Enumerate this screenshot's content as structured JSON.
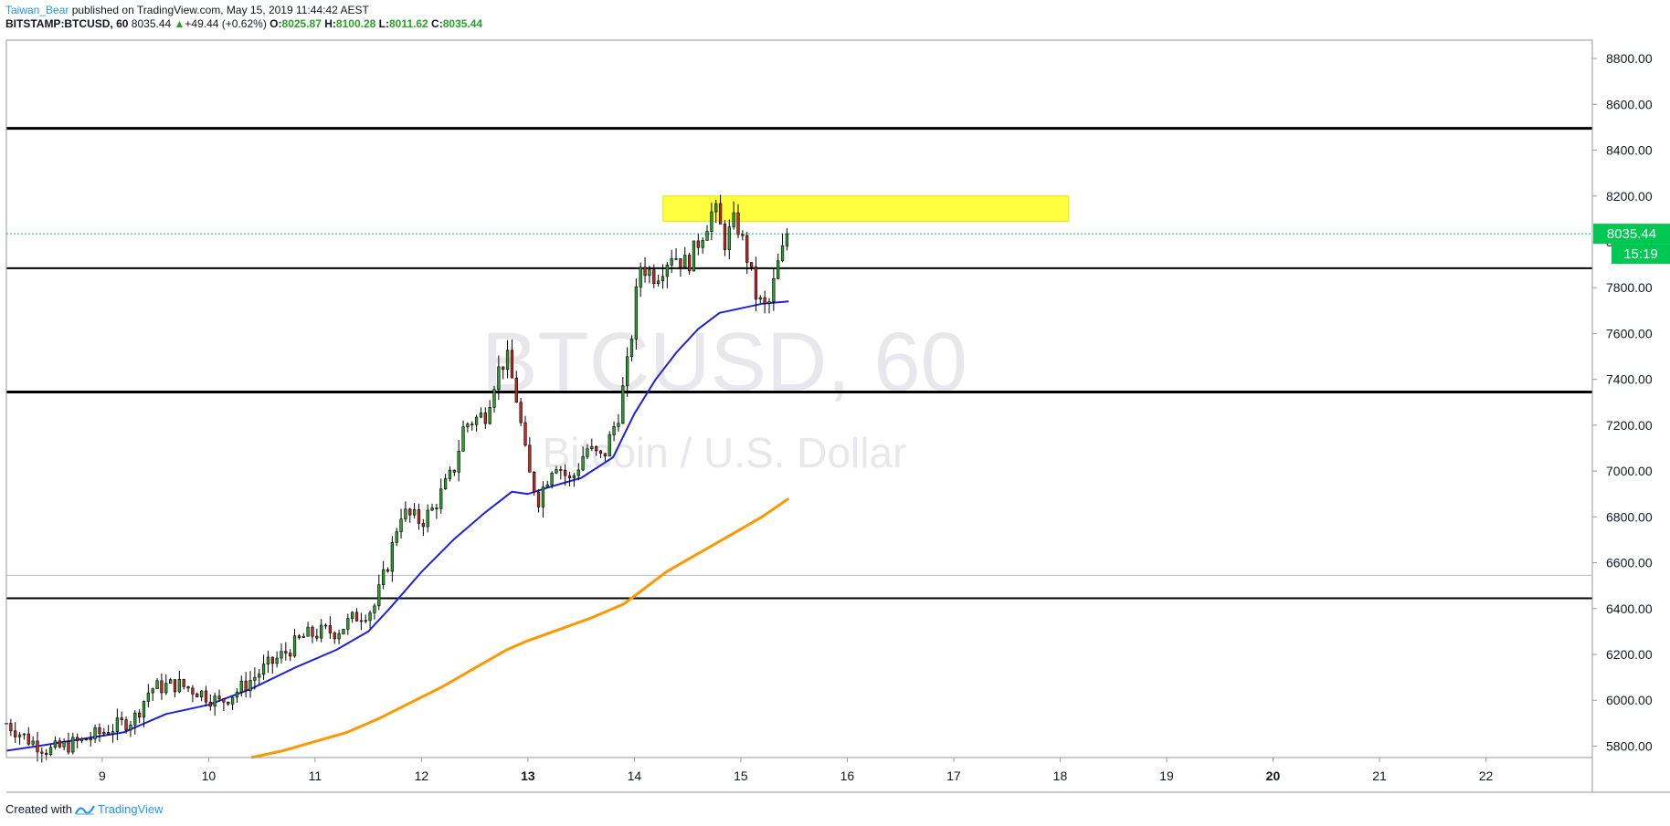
{
  "header": {
    "user": "Taiwan_Bear",
    "published": " published on TradingView.com, May 15, 2019 11:44:42 AEST",
    "symbol": "BITSTAMP:BTCUSD, 60",
    "last": "8035.44",
    "change": "+49.44 (+0.62%)",
    "o_label": "O:",
    "o": "8025.87",
    "h_label": "H:",
    "h": "8100.28",
    "l_label": "L:",
    "l": "8011.62",
    "c_label": "C:",
    "c": "8035.44"
  },
  "watermark": {
    "symbol": "BTCUSD, 60",
    "name": "Bitcoin / U.S. Dollar"
  },
  "price_badge": {
    "price": "8035.44",
    "countdown": "15:19"
  },
  "footer": {
    "created_with": "Created with",
    "brand": "TradingView"
  },
  "colors": {
    "up": "#26a69a",
    "bull_body": "#2ca02c",
    "bear_body": "#c62828",
    "ma_fast": "#1e22d6",
    "ma_slow": "#ff9800",
    "zone": "#ffff00",
    "last_price": "#00c853"
  },
  "chart_data": {
    "type": "candlestick",
    "title": "",
    "xlabel": "",
    "ylabel": "",
    "ylim": [
      5750,
      8880
    ],
    "x_ticks": [
      "9",
      "10",
      "11",
      "12",
      "13",
      "14",
      "15",
      "16",
      "17",
      "18",
      "19",
      "20",
      "21",
      "22"
    ],
    "x_tick_values": [
      9,
      10,
      11,
      12,
      13,
      14,
      15,
      16,
      17,
      18,
      19,
      20,
      21,
      22
    ],
    "bold_ticks": [
      "13",
      "20"
    ],
    "xlim": [
      8.1,
      23.0
    ],
    "y_ticks": [
      5800,
      6000,
      6200,
      6400,
      6600,
      6800,
      7000,
      7200,
      7400,
      7600,
      7800,
      8000,
      8200,
      8400,
      8600,
      8800
    ],
    "y_tick_labels": [
      "5800.00",
      "6000.00",
      "6200.00",
      "6400.00",
      "6600.00",
      "6800.00",
      "7000.00",
      "7200.00",
      "7400.00",
      "7600.00",
      "7800.00",
      "8000.00",
      "8200.00",
      "8400.00",
      "8600.00",
      "8800.00"
    ],
    "horizontal_lines": [
      {
        "price": 8495,
        "width": 3
      },
      {
        "price": 7885,
        "width": 2
      },
      {
        "price": 7345,
        "width": 3
      },
      {
        "price": 6445,
        "width": 2
      },
      {
        "price": 6545,
        "width": 1,
        "color": "#bbbbbb"
      }
    ],
    "zone": {
      "x_start": 14.27,
      "x_end": 18.08,
      "low": 8090,
      "high": 8200
    },
    "last_price": 8035.44,
    "candle_anchors": [
      [
        8.1,
        5900
      ],
      [
        8.3,
        5830
      ],
      [
        8.5,
        5780
      ],
      [
        8.8,
        5820
      ],
      [
        9.1,
        5880
      ],
      [
        9.3,
        5920
      ],
      [
        9.45,
        6050
      ],
      [
        9.7,
        6070
      ],
      [
        9.9,
        6040
      ],
      [
        10.1,
        5990
      ],
      [
        10.3,
        6050
      ],
      [
        10.5,
        6130
      ],
      [
        10.7,
        6200
      ],
      [
        10.9,
        6280
      ],
      [
        11.1,
        6300
      ],
      [
        11.2,
        6300
      ],
      [
        11.4,
        6370
      ],
      [
        11.55,
        6400
      ],
      [
        11.7,
        6620
      ],
      [
        11.8,
        6820
      ],
      [
        12.0,
        6780
      ],
      [
        12.1,
        6830
      ],
      [
        12.3,
        7000
      ],
      [
        12.4,
        7200
      ],
      [
        12.6,
        7250
      ],
      [
        12.7,
        7420
      ],
      [
        12.8,
        7500
      ],
      [
        12.9,
        7300
      ],
      [
        13.0,
        7000
      ],
      [
        13.1,
        6880
      ],
      [
        13.25,
        7050
      ],
      [
        13.4,
        6950
      ],
      [
        13.55,
        7100
      ],
      [
        13.7,
        7050
      ],
      [
        13.85,
        7250
      ],
      [
        13.95,
        7500
      ],
      [
        14.05,
        7900
      ],
      [
        14.2,
        7850
      ],
      [
        14.35,
        7950
      ],
      [
        14.5,
        7900
      ],
      [
        14.65,
        8050
      ],
      [
        14.75,
        8150
      ],
      [
        14.85,
        8000
      ],
      [
        14.95,
        8100
      ],
      [
        15.05,
        7950
      ],
      [
        15.15,
        7750
      ],
      [
        15.25,
        7700
      ],
      [
        15.35,
        7900
      ],
      [
        15.45,
        8035
      ]
    ],
    "series": [
      {
        "name": "",
        "x": [
          8.1,
          8.4,
          8.8,
          9.2,
          9.6,
          10.0,
          10.4,
          10.8,
          11.2,
          11.5,
          11.7,
          12.0,
          12.3,
          12.6,
          12.85,
          13.0,
          13.2,
          13.5,
          13.8,
          14.0,
          14.2,
          14.4,
          14.6,
          14.8,
          15.0,
          15.2,
          15.45
        ],
        "values": [
          5780,
          5800,
          5830,
          5860,
          5940,
          5980,
          6050,
          6140,
          6220,
          6300,
          6400,
          6560,
          6700,
          6820,
          6910,
          6900,
          6930,
          6970,
          7060,
          7250,
          7400,
          7520,
          7620,
          7690,
          7710,
          7730,
          7740
        ]
      },
      {
        "name": "",
        "x": [
          10.4,
          10.7,
          11.0,
          11.3,
          11.6,
          11.9,
          12.2,
          12.5,
          12.8,
          13.0,
          13.3,
          13.6,
          13.9,
          14.1,
          14.3,
          14.6,
          14.9,
          15.2,
          15.45
        ],
        "values": [
          5750,
          5780,
          5820,
          5860,
          5920,
          5990,
          6060,
          6140,
          6220,
          6260,
          6310,
          6360,
          6420,
          6490,
          6560,
          6640,
          6720,
          6800,
          6880
        ]
      }
    ]
  }
}
